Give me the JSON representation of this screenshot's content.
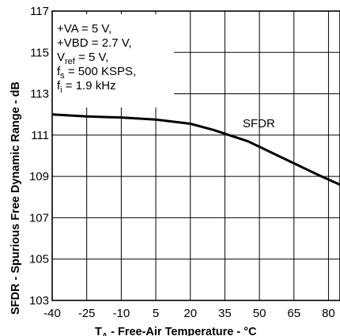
{
  "chart_data": {
    "type": "line",
    "xlabel_main": "T",
    "xlabel_sub": "A",
    "xlabel_rest": " - Free-Air Temperature - °C",
    "ylabel": "SFDR - Spurious Free Dynamic Range - dB",
    "xlim": [
      -40,
      85
    ],
    "ylim": [
      103,
      117
    ],
    "x_ticks": [
      -40,
      -25,
      -10,
      5,
      20,
      35,
      50,
      65,
      80
    ],
    "y_ticks": [
      103,
      105,
      107,
      109,
      111,
      113,
      115,
      117
    ],
    "grid": true,
    "series": [
      {
        "name": "SFDR",
        "x": [
          -40,
          -25,
          -10,
          5,
          20,
          30,
          45,
          60,
          75,
          85
        ],
        "y": [
          112.0,
          111.9,
          111.85,
          111.75,
          111.55,
          111.25,
          110.7,
          109.9,
          109.1,
          108.6
        ]
      }
    ],
    "annotation": {
      "lines": [
        {
          "main": "+VA = 5 V,"
        },
        {
          "main": "+VBD = 2.7 V,"
        },
        {
          "main": "V",
          "sub": "ref",
          "rest": " = 5 V,"
        },
        {
          "main": "f",
          "sub": "s",
          "rest": " = 500 KSPS,"
        },
        {
          "main": "f",
          "sub": "i",
          "rest": " = 1.9 kHz"
        }
      ]
    }
  }
}
